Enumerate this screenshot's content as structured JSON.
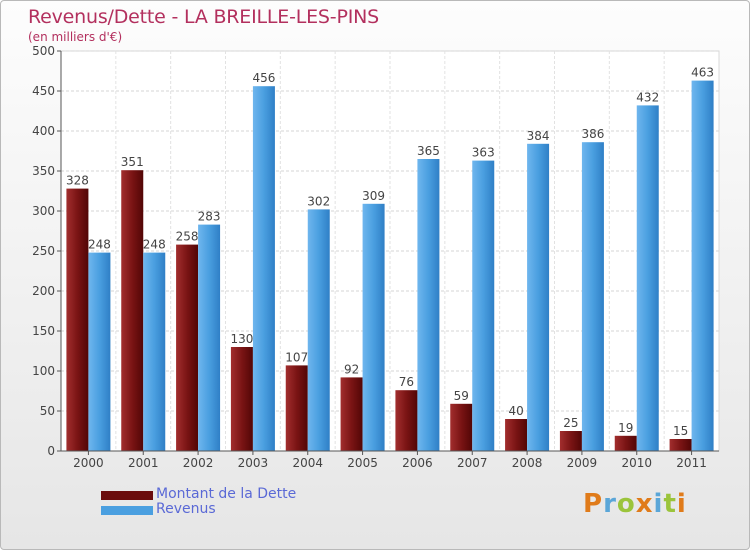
{
  "title": "Revenus/Dette - LA BREILLE-LES-PINS",
  "subtitle": "(en milliers d'€)",
  "colors": {
    "dette": "#7a1212",
    "revenus": "#4a9fe0",
    "title": "#b3305e",
    "legend_text": "#5a69d6"
  },
  "legend": [
    {
      "label": "Montant de la Dette",
      "color": "#6b0c0c"
    },
    {
      "label": "Revenus",
      "color": "#4a9fe0"
    }
  ],
  "logo": {
    "text": "Proxiti"
  },
  "chart_data": {
    "type": "bar",
    "title": "Revenus/Dette - LA BREILLE-LES-PINS",
    "subtitle": "(en milliers d'€)",
    "categories": [
      "2000",
      "2001",
      "2002",
      "2003",
      "2004",
      "2005",
      "2006",
      "2007",
      "2008",
      "2009",
      "2010",
      "2011"
    ],
    "series": [
      {
        "name": "Montant de la Dette",
        "values": [
          328,
          351,
          258,
          130,
          107,
          92,
          76,
          59,
          40,
          25,
          19,
          15
        ]
      },
      {
        "name": "Revenus",
        "values": [
          248,
          248,
          283,
          456,
          302,
          309,
          365,
          363,
          384,
          386,
          432,
          463
        ]
      }
    ],
    "ylim": [
      0,
      500
    ],
    "yticks": [
      0,
      50,
      100,
      150,
      200,
      250,
      300,
      350,
      400,
      450,
      500
    ],
    "grid": true,
    "legend_position": "bottom-left"
  }
}
